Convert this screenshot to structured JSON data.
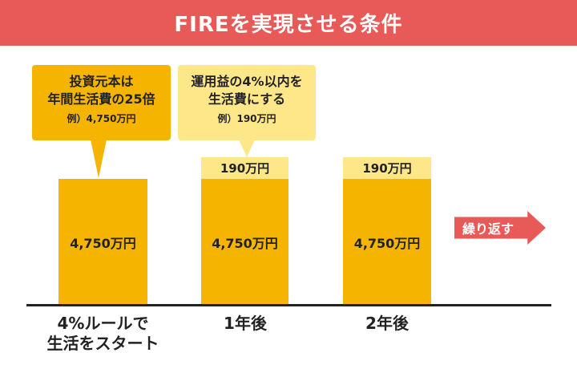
{
  "colors": {
    "accent": "#e85a57",
    "orange": "#f5b400",
    "lightyellow": "#fde789"
  },
  "title": "FIREを実現させる条件",
  "callout_1": {
    "line1": "投資元本は",
    "line2": "年間生活費の25倍",
    "example": "例）4,750万円"
  },
  "callout_2": {
    "line1": "運用益の4%以内を",
    "line2": "生活費にする",
    "example": "例）190万円"
  },
  "columns": [
    {
      "principal": "4,750万円",
      "label_line1": "4%ルールで",
      "label_line2": "生活をスタート"
    },
    {
      "principal": "4,750万円",
      "withdrawal": "190万円",
      "label_line1": "1年後"
    },
    {
      "principal": "4,750万円",
      "withdrawal": "190万円",
      "label_line1": "2年後"
    }
  ],
  "repeat_label": "繰り返す"
}
